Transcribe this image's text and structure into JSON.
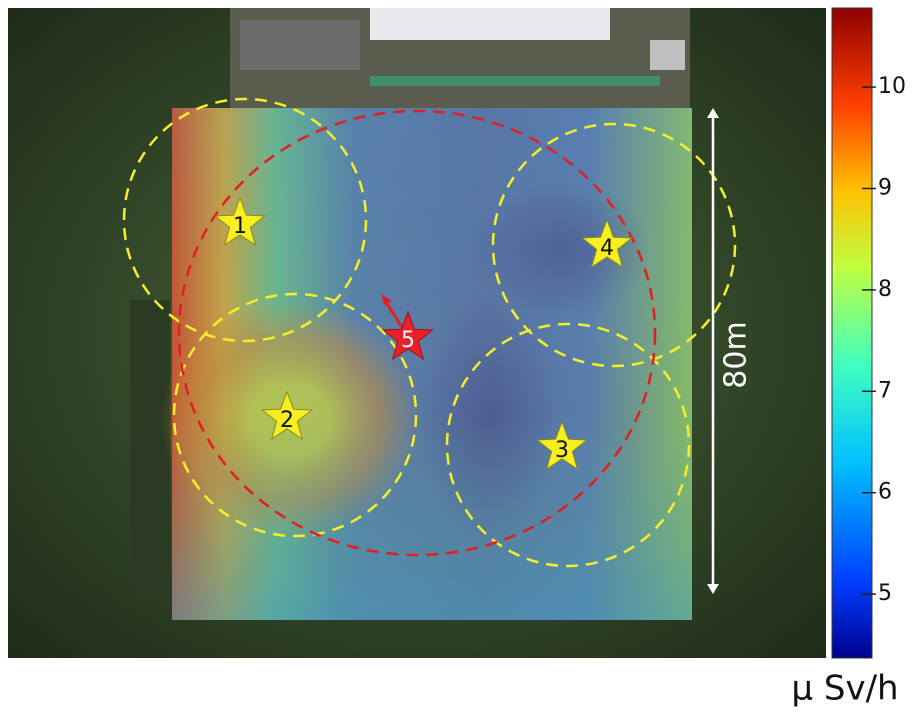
{
  "colorbar": {
    "range": [
      4.37,
      10.78
    ],
    "ticks": [
      5,
      6,
      7,
      8,
      9,
      10
    ],
    "unit": "μ Sv/h"
  },
  "markers": [
    {
      "label": "1"
    },
    {
      "label": "2"
    },
    {
      "label": "3"
    },
    {
      "label": "4"
    },
    {
      "label": "5"
    }
  ],
  "scale_label": "80m"
}
